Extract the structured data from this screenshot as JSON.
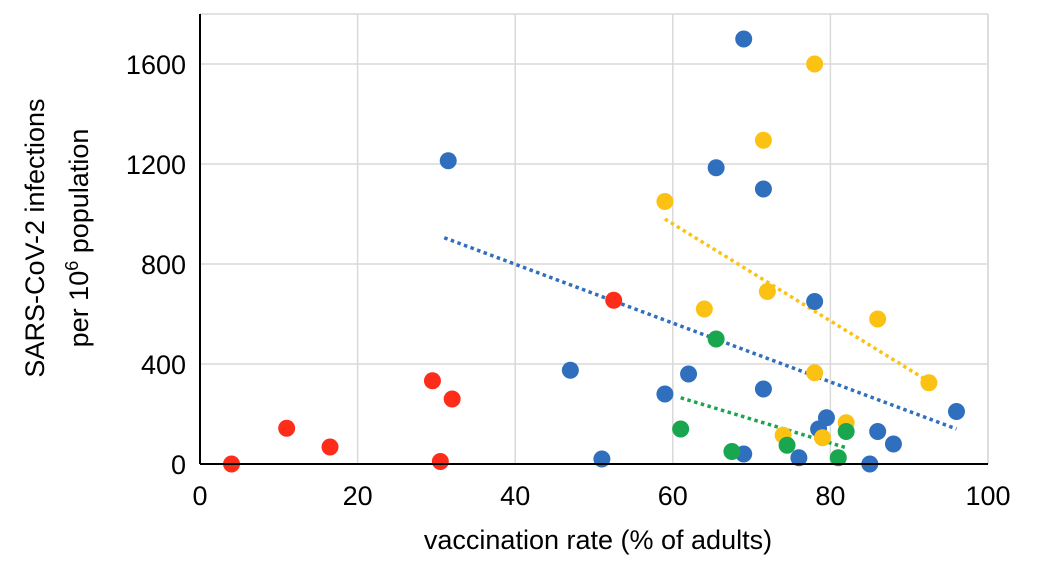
{
  "chart_data": {
    "type": "scatter",
    "xlabel": "vaccination rate (% of adults)",
    "ylabel": {
      "line1": "SARS-CoV-2 infections",
      "line2_pre": "per 10",
      "line2_sup": "6",
      "line2_post": " population"
    },
    "xlim": [
      0,
      100
    ],
    "ylim": [
      0,
      1800
    ],
    "x_ticks": [
      "0",
      "20",
      "40",
      "60",
      "80",
      "100"
    ],
    "y_ticks": [
      "0",
      "400",
      "800",
      "1200",
      "1600"
    ],
    "grid": true,
    "legend": "none",
    "series": [
      {
        "color": "#fe2d1a",
        "points": [
          [
            4,
            0
          ],
          [
            11,
            143
          ],
          [
            16.5,
            68
          ],
          [
            29.5,
            333
          ],
          [
            30.5,
            10
          ],
          [
            32,
            260
          ],
          [
            52.5,
            655
          ]
        ]
      },
      {
        "color": "#2f6fbd",
        "points": [
          [
            31.5,
            1213
          ],
          [
            47,
            375
          ],
          [
            51,
            20
          ],
          [
            59,
            280
          ],
          [
            62,
            360
          ],
          [
            65.5,
            1185
          ],
          [
            69,
            1700
          ],
          [
            69,
            40
          ],
          [
            71.5,
            1100
          ],
          [
            71.5,
            300
          ],
          [
            76,
            25
          ],
          [
            78,
            650
          ],
          [
            78.5,
            140
          ],
          [
            79.5,
            185
          ],
          [
            85,
            0
          ],
          [
            86,
            130
          ],
          [
            88,
            80
          ],
          [
            96,
            210
          ]
        ],
        "trend": [
          [
            31,
            905
          ],
          [
            96,
            140
          ]
        ]
      },
      {
        "color": "#fcc213",
        "points": [
          [
            59,
            1050
          ],
          [
            64,
            620
          ],
          [
            71.5,
            1295
          ],
          [
            72,
            690
          ],
          [
            74,
            115
          ],
          [
            78,
            365
          ],
          [
            78,
            1600
          ],
          [
            79,
            105
          ],
          [
            82,
            165
          ],
          [
            86,
            580
          ],
          [
            92.5,
            325
          ]
        ],
        "trend": [
          [
            59,
            980
          ],
          [
            93,
            320
          ]
        ]
      },
      {
        "color": "#18a64e",
        "points": [
          [
            61,
            140
          ],
          [
            65.5,
            500
          ],
          [
            67.5,
            50
          ],
          [
            74.5,
            75
          ],
          [
            81,
            25
          ],
          [
            82,
            130
          ]
        ],
        "trend": [
          [
            61,
            265
          ],
          [
            82,
            65
          ]
        ]
      }
    ]
  }
}
